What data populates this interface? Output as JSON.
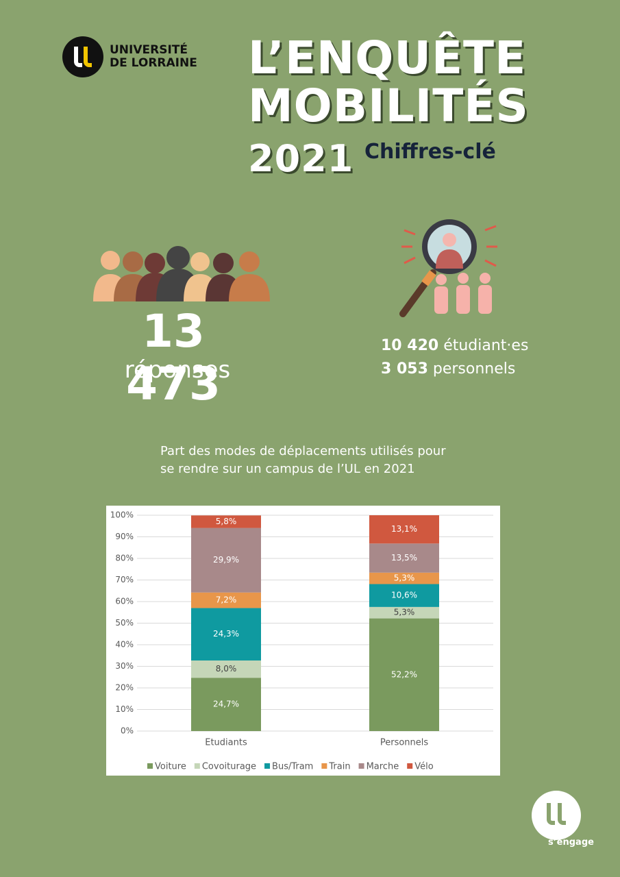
{
  "header": {
    "logo": [
      "UNIVERSITÉ",
      "DE LORRAINE"
    ],
    "title": [
      "L’ENQUÊTE",
      "MOBILITÉS"
    ],
    "year": "2021",
    "subtitle": "Chiffres-clé"
  },
  "stats": {
    "total": "13 473",
    "total_label": "réponses",
    "breakdown": [
      {
        "number": "10 420",
        "label": "étudiant·es"
      },
      {
        "number": "3 053",
        "label": "personnels"
      }
    ]
  },
  "chart_data": {
    "type": "stacked_bar",
    "title": [
      "Part des modes de déplacements utilisés pour",
      "se rendre sur un campus de l’UL en 2021"
    ],
    "categories": [
      "Etudiants",
      "Personnels"
    ],
    "series": [
      {
        "name": "Voiture",
        "color": "#7a9a5e",
        "values": [
          24.7,
          52.2
        ],
        "value_labels": [
          "24,7%",
          "52,2%"
        ]
      },
      {
        "name": "Covoiturage",
        "color": "#c5d6b8",
        "values": [
          8.0,
          5.3
        ],
        "value_labels": [
          "8,0%",
          "5,3%"
        ]
      },
      {
        "name": "Bus/Tram",
        "color": "#0f9aa0",
        "values": [
          24.3,
          10.6
        ],
        "value_labels": [
          "24,3%",
          "10,6%"
        ]
      },
      {
        "name": "Train",
        "color": "#e8964a",
        "values": [
          7.2,
          5.3
        ],
        "value_labels": [
          "7,2%",
          "5,3%"
        ]
      },
      {
        "name": "Marche",
        "color": "#a8898a",
        "values": [
          29.9,
          13.5
        ],
        "value_labels": [
          "29,9%",
          "13,5%"
        ]
      },
      {
        "name": "Vélo",
        "color": "#d0583f",
        "values": [
          5.8,
          13.1
        ],
        "value_labels": [
          "5,8%",
          "13,1%"
        ]
      }
    ],
    "ylim": [
      0,
      100
    ],
    "yticks": [
      {
        "value": 0,
        "label": "0%"
      },
      {
        "value": 10,
        "label": "10%"
      },
      {
        "value": 20,
        "label": "20%"
      },
      {
        "value": 30,
        "label": "30%"
      },
      {
        "value": 40,
        "label": "40%"
      },
      {
        "value": 50,
        "label": "50%"
      },
      {
        "value": 60,
        "label": "60%"
      },
      {
        "value": 70,
        "label": "70%"
      },
      {
        "value": 80,
        "label": "80%"
      },
      {
        "value": 90,
        "label": "90%"
      },
      {
        "value": 100,
        "label": "100%"
      }
    ],
    "grid": true,
    "legend": "bottom"
  },
  "footer": {
    "tagline": "s’engage"
  }
}
